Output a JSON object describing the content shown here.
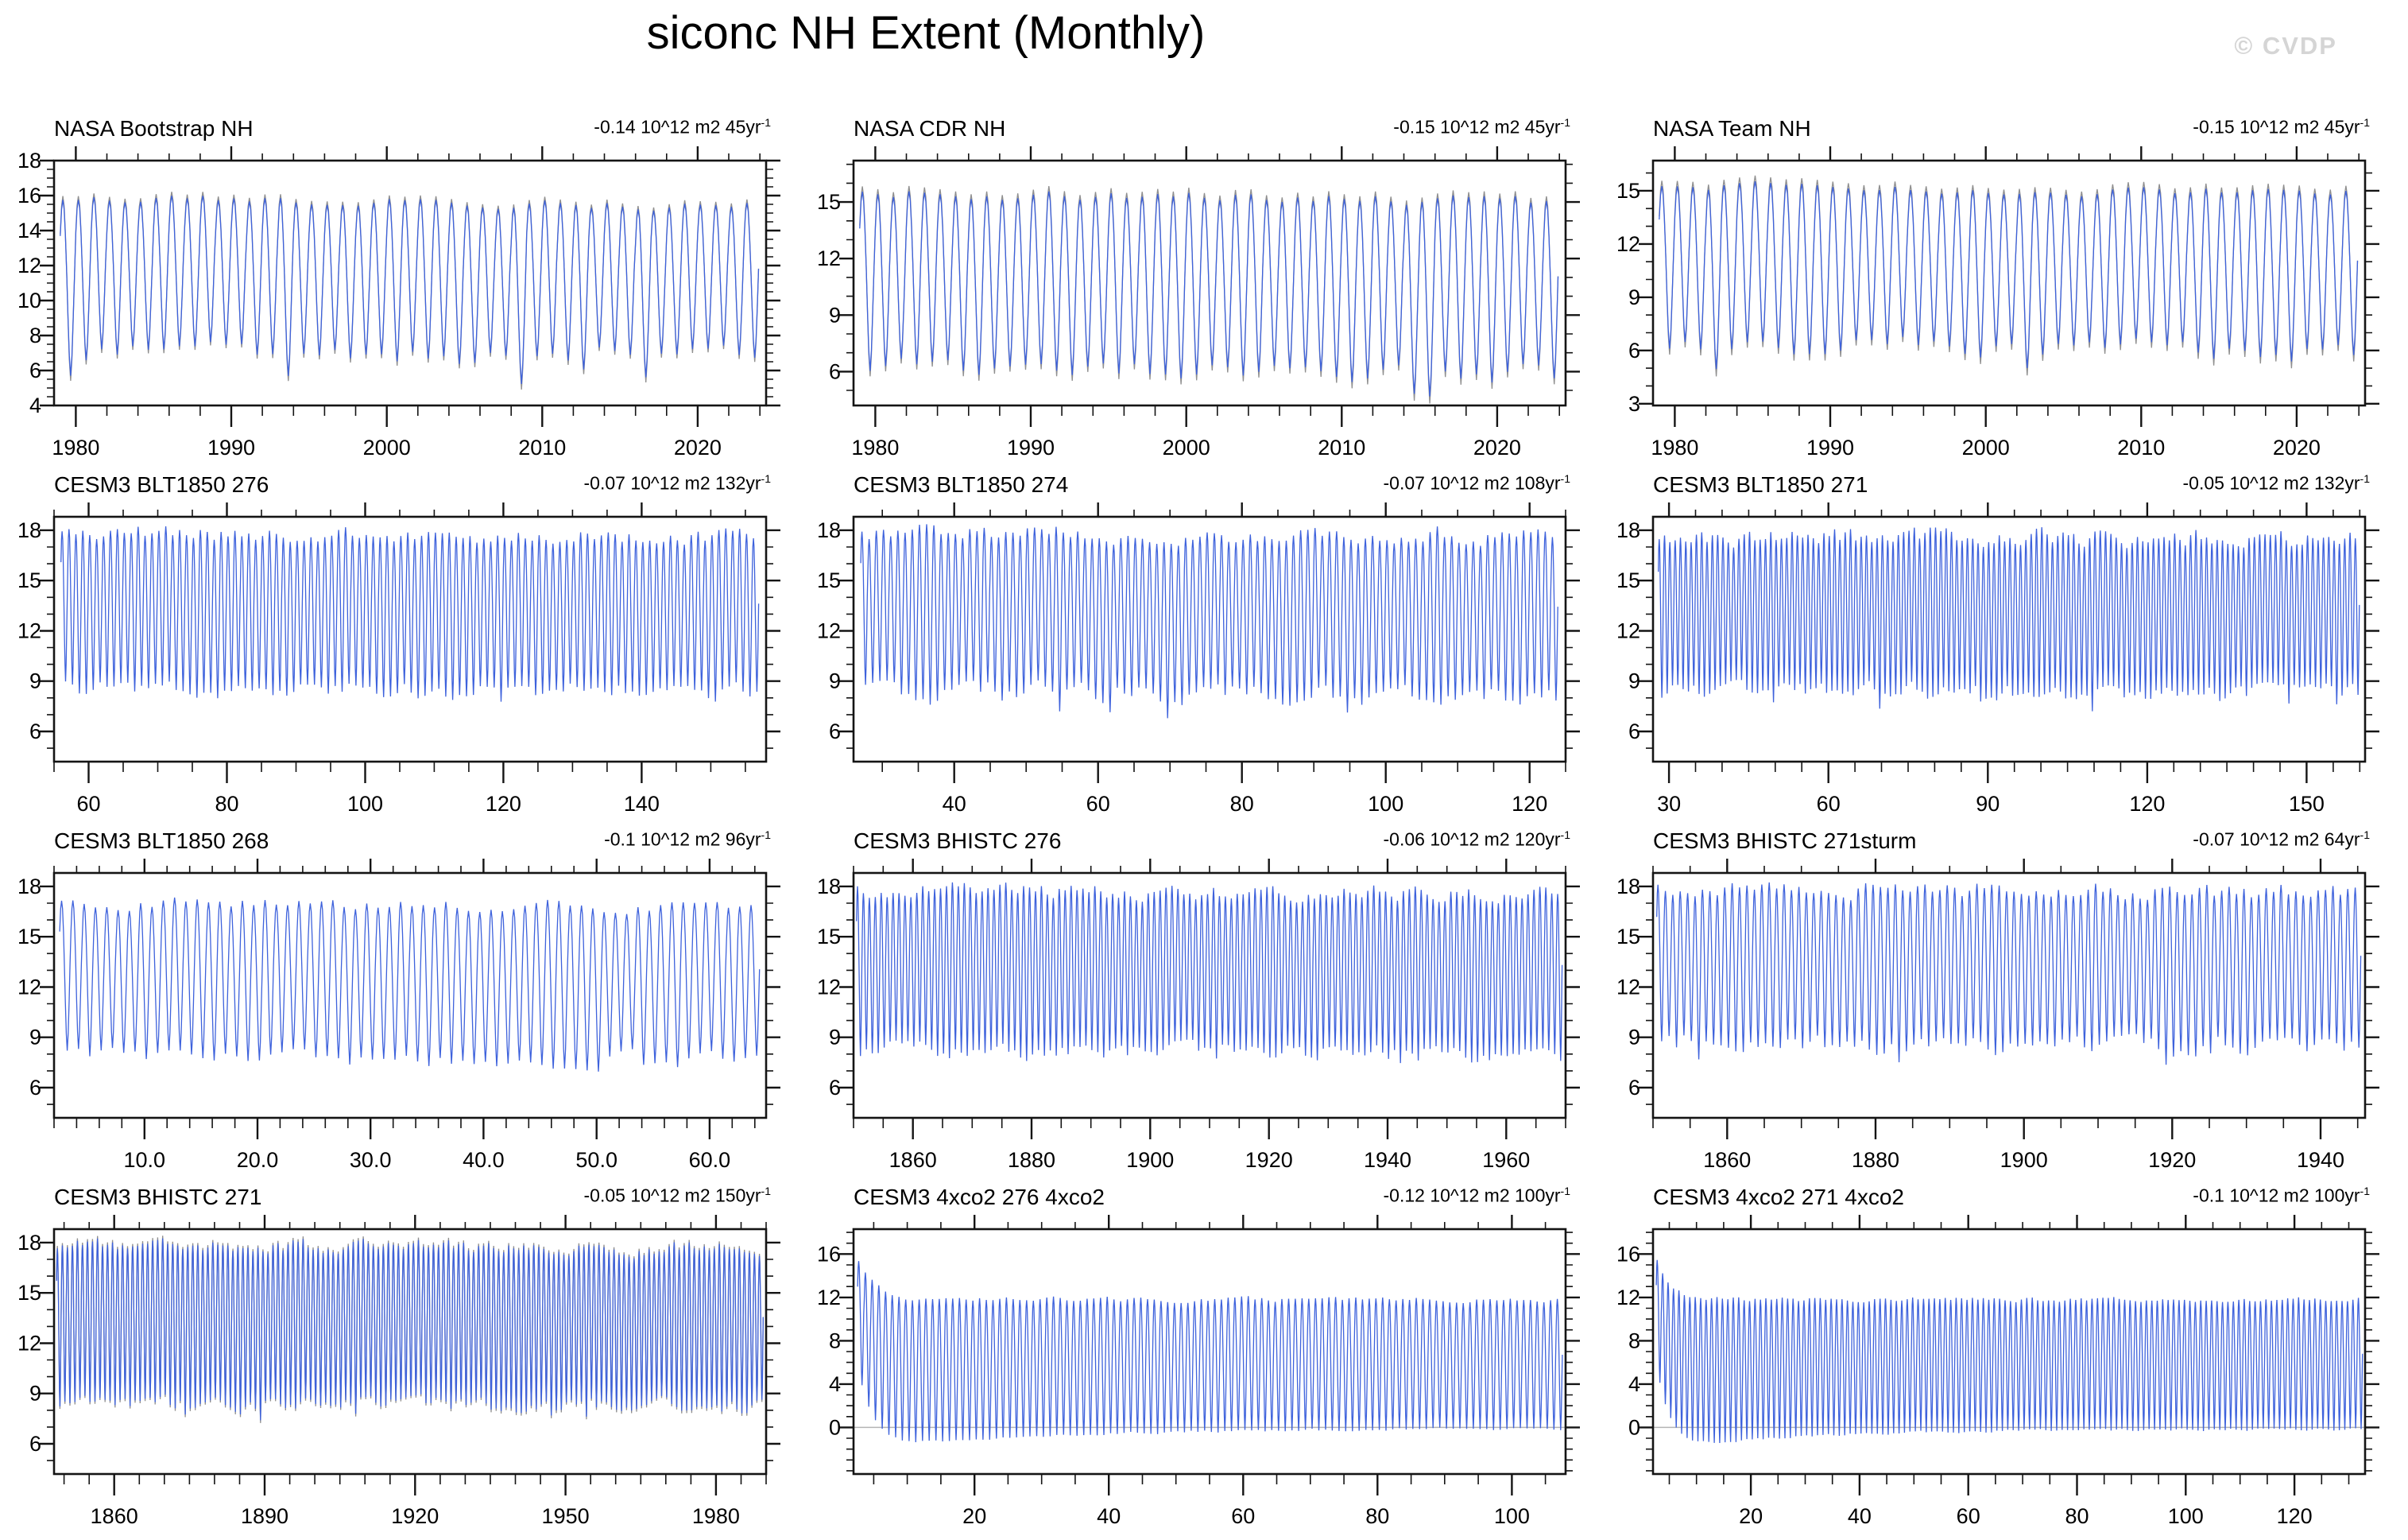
{
  "page": {
    "title": "siconc NH Extent (Monthly)",
    "watermark": "© CVDP"
  },
  "colors": {
    "line_blue": "#3E62DC",
    "line_gray": "#8f8f8f",
    "zero_line": "#b4b4b4",
    "axis": "#141414",
    "watermark_gray": "#d5d5d5"
  },
  "chart_data": [
    {
      "type": "line",
      "title": "NASA Bootstrap NH",
      "trend": "-0.14 10^12 m2 45yr",
      "trend_sup": "-1",
      "xlim": [
        1978.6,
        2024.4
      ],
      "ylim": [
        4,
        18
      ],
      "xticks": [
        1980,
        1990,
        2000,
        2010,
        2020
      ],
      "xlabels": [
        "1980",
        "1990",
        "2000",
        "2010",
        "2020"
      ],
      "xminor": 2,
      "yticks": [
        18,
        16,
        14,
        12,
        10,
        8,
        6,
        4
      ],
      "ylabels": [
        "18",
        "16",
        "14",
        "12",
        "10",
        "8",
        "6",
        "4"
      ],
      "yminor": 0.5,
      "zero_line": false,
      "series": {
        "mode": "seasonal",
        "start": 1979,
        "years": 45,
        "peak": [
          15.4,
          16.3
        ],
        "trough": [
          6.1,
          8.1
        ],
        "deep": 0.06,
        "deep_amt": 1.0,
        "drift": -0.45,
        "gray": 1.05,
        "seed": 11
      }
    },
    {
      "type": "line",
      "title": "NASA CDR NH",
      "trend": "-0.15 10^12 m2 45yr",
      "trend_sup": "-1",
      "xlim": [
        1978.6,
        2024.4
      ],
      "ylim": [
        4.2,
        17.2
      ],
      "xticks": [
        1980,
        1990,
        2000,
        2010,
        2020
      ],
      "xlabels": [
        "1980",
        "1990",
        "2000",
        "2010",
        "2020"
      ],
      "xminor": 2,
      "yticks": [
        15,
        12,
        9,
        6
      ],
      "ylabels": [
        "15",
        "12",
        "9",
        "6"
      ],
      "yminor": 1,
      "zero_line": false,
      "series": {
        "mode": "seasonal",
        "start": 1979,
        "years": 45,
        "peak": [
          15.0,
          16.0
        ],
        "trough": [
          5.3,
          7.4
        ],
        "deep": 0.06,
        "deep_amt": 1.0,
        "drift": -0.5,
        "gray": 1.06,
        "seed": 22
      }
    },
    {
      "type": "line",
      "title": "NASA Team NH",
      "trend": "-0.15 10^12 m2 45yr",
      "trend_sup": "-1",
      "xlim": [
        1978.6,
        2024.4
      ],
      "ylim": [
        2.9,
        16.7
      ],
      "xticks": [
        1980,
        1990,
        2000,
        2010,
        2020
      ],
      "xlabels": [
        "1980",
        "1990",
        "2000",
        "2010",
        "2020"
      ],
      "xminor": 2,
      "yticks": [
        15,
        12,
        9,
        6,
        3
      ],
      "ylabels": [
        "15",
        "12",
        "9",
        "6",
        "3"
      ],
      "yminor": 1,
      "zero_line": false,
      "series": {
        "mode": "seasonal",
        "start": 1979,
        "years": 45,
        "peak": [
          14.9,
          15.8
        ],
        "trough": [
          5.4,
          7.5
        ],
        "deep": 0.06,
        "deep_amt": 1.1,
        "drift": -0.55,
        "gray": 1.07,
        "seed": 33
      }
    },
    {
      "type": "line",
      "title": "CESM3 BLT1850 276",
      "trend": "-0.07 10^12 m2 132yr",
      "trend_sup": "-1",
      "xlim": [
        55,
        158
      ],
      "ylim": [
        4.2,
        18.8
      ],
      "xticks": [
        60,
        80,
        100,
        120,
        140
      ],
      "xlabels": [
        "60",
        "80",
        "100",
        "120",
        "140"
      ],
      "xminor": 5,
      "yticks": [
        18,
        15,
        12,
        9,
        6
      ],
      "ylabels": [
        "18",
        "15",
        "12",
        "9",
        "6"
      ],
      "yminor": 1,
      "zero_line": false,
      "series": {
        "mode": "seasonal",
        "start": 56,
        "years": 101,
        "peak": [
          16.9,
          18.7
        ],
        "trough": [
          7.6,
          9.6
        ],
        "deep": 0.03,
        "deep_amt": 0.6,
        "drift": -0.2,
        "gray": 0,
        "seed": 44
      }
    },
    {
      "type": "line",
      "title": "CESM3 BLT1850 274",
      "trend": "-0.07 10^12 m2 108yr",
      "trend_sup": "-1",
      "xlim": [
        26,
        125
      ],
      "ylim": [
        4.2,
        18.8
      ],
      "xticks": [
        40,
        60,
        80,
        100,
        120
      ],
      "xlabels": [
        "40",
        "60",
        "80",
        "100",
        "120"
      ],
      "xminor": 5,
      "yticks": [
        18,
        15,
        12,
        9,
        6
      ],
      "ylabels": [
        "18",
        "15",
        "12",
        "9",
        "6"
      ],
      "yminor": 1,
      "zero_line": false,
      "series": {
        "mode": "seasonal",
        "start": 27,
        "years": 97,
        "peak": [
          16.9,
          18.8
        ],
        "trough": [
          7.2,
          9.5
        ],
        "deep": 0.04,
        "deep_amt": 0.7,
        "drift": -0.2,
        "gray": 0,
        "seed": 55
      }
    },
    {
      "type": "line",
      "title": "CESM3 BLT1850 271",
      "trend": "-0.05 10^12 m2 132yr",
      "trend_sup": "-1",
      "xlim": [
        27,
        161
      ],
      "ylim": [
        4.2,
        18.8
      ],
      "xticks": [
        30,
        60,
        90,
        120,
        150
      ],
      "xlabels": [
        "30",
        "60",
        "90",
        "120",
        "150"
      ],
      "xminor": 5,
      "yticks": [
        18,
        15,
        12,
        9,
        6
      ],
      "ylabels": [
        "18",
        "15",
        "12",
        "9",
        "6"
      ],
      "yminor": 1,
      "zero_line": false,
      "series": {
        "mode": "seasonal",
        "start": 28,
        "years": 132,
        "peak": [
          16.6,
          18.6
        ],
        "trough": [
          7.4,
          9.4
        ],
        "deep": 0.03,
        "deep_amt": 0.6,
        "drift": -0.15,
        "gray": 0,
        "seed": 66
      }
    },
    {
      "type": "line",
      "title": "CESM3 BLT1850 268",
      "trend": "-0.1 10^12 m2 96yr",
      "trend_sup": "-1",
      "xlim": [
        2,
        65
      ],
      "ylim": [
        4.2,
        18.8
      ],
      "xticks": [
        10,
        20,
        30,
        40,
        50,
        60
      ],
      "xlabels": [
        "10.0",
        "20.0",
        "30.0",
        "40.0",
        "50.0",
        "60.0"
      ],
      "xminor": 2,
      "yticks": [
        18,
        15,
        12,
        9,
        6
      ],
      "ylabels": [
        "18",
        "15",
        "12",
        "9",
        "6"
      ],
      "yminor": 1,
      "zero_line": false,
      "series": {
        "mode": "seasonal",
        "start": 2.5,
        "years": 62,
        "peak": [
          16.4,
          17.7
        ],
        "trough": [
          7.0,
          8.8
        ],
        "deep": 0.04,
        "deep_amt": 0.6,
        "drift": -0.3,
        "gray": 0,
        "seed": 77
      }
    },
    {
      "type": "line",
      "title": "CESM3 BHISTC 276",
      "trend": "-0.06 10^12 m2 120yr",
      "trend_sup": "-1",
      "xlim": [
        1850,
        1970
      ],
      "ylim": [
        4.2,
        18.8
      ],
      "xticks": [
        1860,
        1880,
        1900,
        1920,
        1940,
        1960
      ],
      "xlabels": [
        "1860",
        "1880",
        "1900",
        "1920",
        "1940",
        "1960"
      ],
      "xminor": 5,
      "yticks": [
        18,
        15,
        12,
        9,
        6
      ],
      "ylabels": [
        "18",
        "15",
        "12",
        "9",
        "6"
      ],
      "yminor": 1,
      "zero_line": false,
      "series": {
        "mode": "seasonal",
        "start": 1850.5,
        "years": 119,
        "peak": [
          16.9,
          18.6
        ],
        "trough": [
          7.3,
          9.3
        ],
        "deep": 0.04,
        "deep_amt": 0.8,
        "drift": -0.2,
        "gray": 0,
        "seed": 88
      }
    },
    {
      "type": "line",
      "title": "CESM3 BHISTC 271sturm",
      "trend": "-0.07 10^12 m2 64yr",
      "trend_sup": "-1",
      "xlim": [
        1850,
        1946
      ],
      "ylim": [
        4.2,
        18.8
      ],
      "xticks": [
        1860,
        1880,
        1900,
        1920,
        1940
      ],
      "xlabels": [
        "1860",
        "1880",
        "1900",
        "1920",
        "1940"
      ],
      "xminor": 5,
      "yticks": [
        18,
        15,
        12,
        9,
        6
      ],
      "ylabels": [
        "18",
        "15",
        "12",
        "9",
        "6"
      ],
      "yminor": 1,
      "zero_line": false,
      "series": {
        "mode": "seasonal",
        "start": 1850.5,
        "years": 95,
        "peak": [
          16.8,
          18.8
        ],
        "trough": [
          7.6,
          9.6
        ],
        "deep": 0.03,
        "deep_amt": 0.7,
        "drift": -0.2,
        "gray": 0,
        "seed": 99
      }
    },
    {
      "type": "line",
      "title": "CESM3 BHISTC 271",
      "trend": "-0.05 10^12 m2 150yr",
      "trend_sup": "-1",
      "xlim": [
        1848,
        1990
      ],
      "ylim": [
        4.2,
        18.8
      ],
      "xticks": [
        1860,
        1890,
        1920,
        1950,
        1980
      ],
      "xlabels": [
        "1860",
        "1890",
        "1920",
        "1950",
        "1980"
      ],
      "xminor": 5,
      "yticks": [
        18,
        15,
        12,
        9,
        6
      ],
      "ylabels": [
        "18",
        "15",
        "12",
        "9",
        "6"
      ],
      "yminor": 1,
      "zero_line": false,
      "series": {
        "mode": "seasonal",
        "start": 1848.5,
        "years": 141,
        "peak": [
          17.0,
          18.5
        ],
        "trough": [
          7.6,
          9.2
        ],
        "deep": 0.03,
        "deep_amt": 0.6,
        "drift": -0.15,
        "gray": 1.03,
        "seed": 110
      }
    },
    {
      "type": "line",
      "title": "CESM3 4xco2 276 4xco2",
      "trend": "-0.12 10^12 m2 100yr",
      "trend_sup": "-1",
      "xlim": [
        2,
        108
      ],
      "ylim": [
        -4.3,
        18.3
      ],
      "xticks": [
        20,
        40,
        60,
        80,
        100
      ],
      "xlabels": [
        "20",
        "40",
        "60",
        "80",
        "100"
      ],
      "xminor": 5,
      "yticks": [
        16,
        12,
        8,
        4,
        0
      ],
      "ylabels": [
        "16",
        "12",
        "8",
        "4",
        "0"
      ],
      "yminor": 1,
      "zero_line": true,
      "series": {
        "mode": "fourx",
        "start": 2.6,
        "years": 105,
        "p_inf": 11.8,
        "p_amp": 3.4,
        "p_tau": 2.6,
        "noise_p": 0.4,
        "t_base": -1.55,
        "t_spike": 5.5,
        "t_tau": 2.3,
        "rise": 1.45,
        "rise_t0": 7,
        "rise_tau": 26,
        "noise_t": 0.25,
        "gray": 0,
        "seed": 121
      }
    },
    {
      "type": "line",
      "title": "CESM3 4xco2 271 4xco2",
      "trend": "-0.1 10^12 m2 100yr",
      "trend_sup": "-1",
      "xlim": [
        2,
        133
      ],
      "ylim": [
        -4.3,
        18.3
      ],
      "xticks": [
        20,
        40,
        60,
        80,
        100,
        120
      ],
      "xlabels": [
        "20",
        "40",
        "60",
        "80",
        "100",
        "120"
      ],
      "xminor": 5,
      "yticks": [
        16,
        12,
        8,
        4,
        0
      ],
      "ylabels": [
        "16",
        "12",
        "8",
        "4",
        "0"
      ],
      "yminor": 1,
      "zero_line": true,
      "series": {
        "mode": "fourx",
        "start": 2.6,
        "years": 130,
        "p_inf": 11.8,
        "p_amp": 3.8,
        "p_tau": 2.6,
        "noise_p": 0.4,
        "t_base": -1.55,
        "t_spike": 5.6,
        "t_tau": 2.3,
        "rise": 1.4,
        "rise_t0": 7,
        "rise_tau": 26,
        "noise_t": 0.25,
        "gray": 0,
        "seed": 132
      }
    }
  ]
}
